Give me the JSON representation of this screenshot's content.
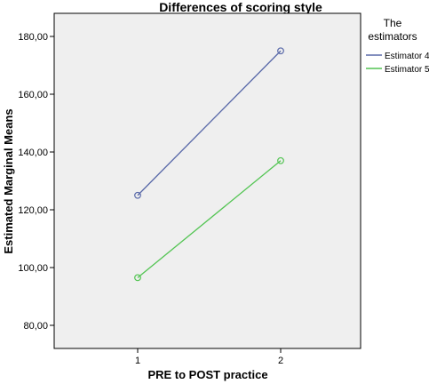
{
  "chart_data": {
    "type": "line",
    "title": "Differences of scoring style",
    "xlabel": "PRE to POST practice",
    "ylabel": "Estimated Marginal Means",
    "categories": [
      "1",
      "2"
    ],
    "ylim": [
      72,
      188
    ],
    "yticks": [
      80,
      100,
      120,
      140,
      160,
      180
    ],
    "ytick_labels": [
      "80,00",
      "100,00",
      "120,00",
      "140,00",
      "160,00",
      "180,00"
    ],
    "grid": false,
    "legend": {
      "title_lines": [
        "The",
        "estimators"
      ],
      "placement": "right"
    },
    "series": [
      {
        "name": "Estimator 4",
        "values": [
          125,
          175
        ],
        "color": "#5868a8"
      },
      {
        "name": "Estimator 5",
        "values": [
          96.5,
          137
        ],
        "color": "#52c452"
      }
    ]
  },
  "colors": {
    "plot_background": "#efefef",
    "axis": "#000000"
  }
}
